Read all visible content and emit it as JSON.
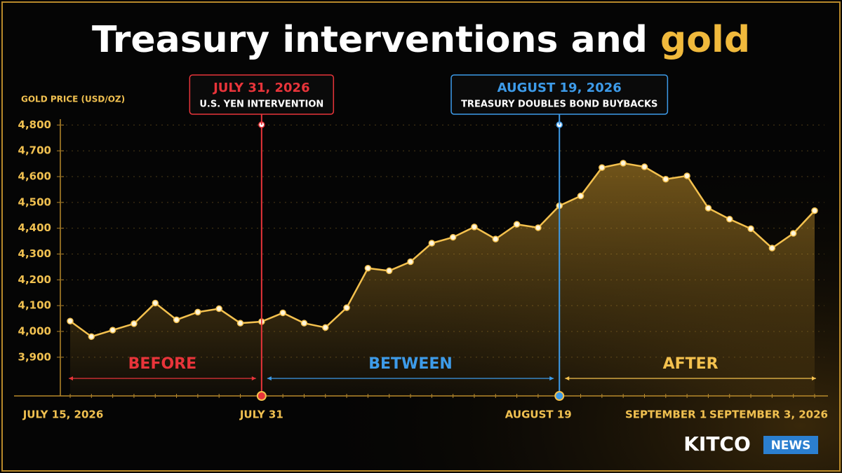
{
  "chart_data": {
    "type": "line",
    "title": "Treasury interventions and",
    "title_highlight": "gold",
    "y_label": "GOLD PRICE (USD/OZ)",
    "categories": [
      "JULY 15, 2026",
      null,
      null,
      null,
      null,
      null,
      null,
      null,
      null,
      "JULY 31",
      null,
      null,
      null,
      null,
      null,
      null,
      null,
      null,
      null,
      null,
      null,
      null,
      null,
      "AUGUST 19",
      null,
      null,
      null,
      null,
      null,
      "SEPTEMBER 1",
      null,
      null,
      null,
      null,
      null,
      "SEPTEMBER 3, 2026"
    ],
    "series": [
      {
        "name": "Gold price",
        "color": "#f4c14e",
        "values": [
          4040,
          3980,
          4005,
          4030,
          4110,
          4045,
          4075,
          4088,
          4032,
          4038,
          4072,
          4032,
          4015,
          4092,
          4245,
          4235,
          4270,
          4342,
          4365,
          4405,
          4358,
          4415,
          4402,
          4487,
          4525,
          4635,
          4652,
          4638,
          4590,
          4603,
          4478,
          4435,
          4398,
          4323,
          4380,
          4468
        ]
      }
    ],
    "ylim": [
      3750,
      4850
    ],
    "yticks": [
      {
        "value": 3900,
        "label": "3,900"
      },
      {
        "value": 4000,
        "label": "4,000"
      },
      {
        "value": 4100,
        "label": "4,100"
      },
      {
        "value": 4200,
        "label": "4,200"
      },
      {
        "value": 4300,
        "label": "4,300"
      },
      {
        "value": 4400,
        "label": "4,400"
      },
      {
        "value": 4500,
        "label": "4,500"
      },
      {
        "value": 4600,
        "label": "4,600"
      },
      {
        "value": 4700,
        "label": "4,700"
      },
      {
        "value": 4800,
        "label": "4,800"
      }
    ],
    "grid": true,
    "events": [
      {
        "title": "JULY 31, 2026",
        "text": "U.S. YEN INTERVENTION",
        "color": "#e8343a",
        "category": "JULY 31"
      },
      {
        "title": "AUGUST 19, 2026",
        "text": "TREASURY DOUBLES BOND BUYBACKS",
        "color": "#3d9be9",
        "category": "AUGUST 19"
      }
    ],
    "regions": [
      {
        "name": "BEFORE",
        "color": "#e8343a"
      },
      {
        "name": "BETWEEN",
        "color": "#3d9be9"
      },
      {
        "name": "AFTER",
        "color": "#f4c14e"
      }
    ]
  },
  "logo": {
    "brand": "KITCO",
    "tag": "NEWS"
  }
}
